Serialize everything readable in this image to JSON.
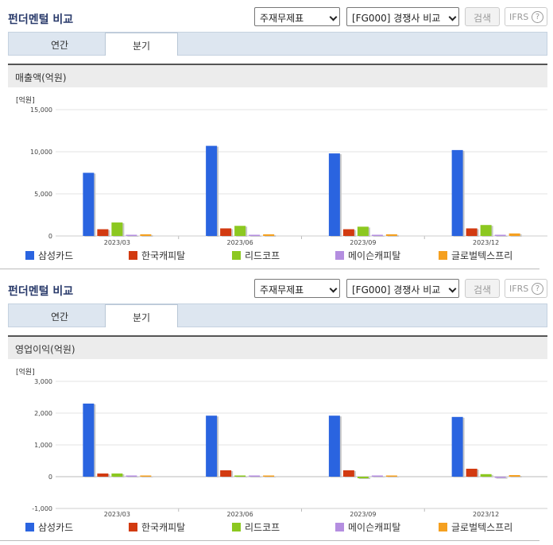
{
  "panels": [
    {
      "title": "펀더멘털 비교",
      "select1": "주재무제표",
      "select2": "[FG000] 경쟁사 비교",
      "search_label": "검색",
      "ifrs_label": "IFRS",
      "help_glyph": "?",
      "tabs": [
        {
          "label": "연간"
        },
        {
          "label": "분기"
        }
      ],
      "active_tab": 1,
      "chart_title": "매출액(억원)"
    },
    {
      "title": "펀더멘털 비교",
      "select1": "주재무제표",
      "select2": "[FG000] 경쟁사 비교",
      "search_label": "검색",
      "ifrs_label": "IFRS",
      "help_glyph": "?",
      "tabs": [
        {
          "label": "연간"
        },
        {
          "label": "분기"
        }
      ],
      "active_tab": 1,
      "chart_title": "영업이익(억원)"
    }
  ],
  "colors": {
    "삼성카드": "#2a64e0",
    "한국캐피탈": "#d23a10",
    "리드코프": "#8cc820",
    "메이슨캐피탈": "#b48ee0",
    "글로벌텍스프리": "#f5a020"
  },
  "chart_data": [
    {
      "type": "bar",
      "unit_label": "[억원]",
      "categories": [
        "2023/03",
        "2023/06",
        "2023/09",
        "2023/12"
      ],
      "ylim": [
        0,
        15000
      ],
      "yticks": [
        "0",
        "5,000",
        "10,000",
        "15,000"
      ],
      "ytick_values": [
        0,
        5000,
        10000,
        15000
      ],
      "legend": "bottom",
      "series": [
        {
          "name": "삼성카드",
          "values": [
            7500,
            10700,
            9800,
            10200
          ]
        },
        {
          "name": "한국캐피탈",
          "values": [
            800,
            900,
            800,
            900
          ]
        },
        {
          "name": "리드코프",
          "values": [
            1600,
            1200,
            1100,
            1300
          ]
        },
        {
          "name": "메이슨캐피탈",
          "values": [
            10,
            10,
            10,
            10
          ]
        },
        {
          "name": "글로벌텍스프리",
          "values": [
            200,
            200,
            200,
            300
          ]
        }
      ]
    },
    {
      "type": "bar",
      "unit_label": "[억원]",
      "categories": [
        "2023/03",
        "2023/06",
        "2023/09",
        "2023/12"
      ],
      "ylim": [
        -1000,
        3000
      ],
      "yticks": [
        "-1,000",
        "0",
        "1,000",
        "2,000",
        "3,000"
      ],
      "ytick_values": [
        -1000,
        0,
        1000,
        2000,
        3000
      ],
      "legend": "bottom",
      "series": [
        {
          "name": "삼성카드",
          "values": [
            2300,
            1920,
            1920,
            1880
          ]
        },
        {
          "name": "한국캐피탈",
          "values": [
            100,
            200,
            200,
            250
          ]
        },
        {
          "name": "리드코프",
          "values": [
            100,
            30,
            -50,
            80
          ]
        },
        {
          "name": "메이슨캐피탈",
          "values": [
            0,
            0,
            0,
            -30
          ]
        },
        {
          "name": "글로벌텍스프리",
          "values": [
            0,
            0,
            20,
            50
          ]
        }
      ]
    }
  ]
}
